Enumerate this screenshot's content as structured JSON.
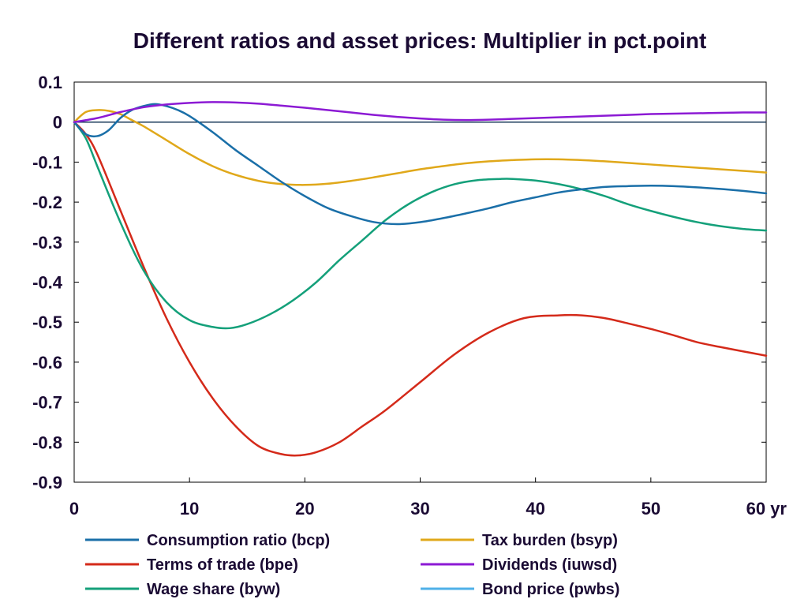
{
  "chart_data": {
    "type": "line",
    "title": "Different ratios and asset prices: Multiplier in pct.point",
    "x_unit_label": "yr",
    "xlim": [
      0,
      60
    ],
    "ylim": [
      -0.9,
      0.1
    ],
    "x_ticks": [
      0,
      10,
      20,
      30,
      40,
      50,
      60
    ],
    "y_ticks": [
      0.1,
      0,
      -0.1,
      -0.2,
      -0.3,
      -0.4,
      -0.5,
      -0.6,
      -0.7,
      -0.8,
      -0.9
    ],
    "y_tick_labels": [
      "0.1",
      "0",
      "-0.1",
      "-0.2",
      "-0.3",
      "-0.4",
      "-0.5",
      "-0.6",
      "-0.7",
      "-0.8",
      "-0.9"
    ],
    "zero_line": true,
    "grid": false,
    "legend_position": "bottom",
    "series": [
      {
        "name": "Consumption ratio (bcp)",
        "color": "#1a6fa8",
        "x": [
          0,
          1,
          2,
          3,
          4,
          5,
          6,
          7,
          8,
          9,
          10,
          12,
          14,
          16,
          18,
          20,
          22,
          24,
          26,
          28,
          30,
          32,
          34,
          36,
          38,
          40,
          42,
          44,
          46,
          48,
          50,
          52,
          54,
          56,
          58,
          60
        ],
        "y": [
          0,
          -0.03,
          -0.035,
          -0.02,
          0.01,
          0.03,
          0.04,
          0.045,
          0.04,
          0.03,
          0.015,
          -0.025,
          -0.07,
          -0.11,
          -0.15,
          -0.185,
          -0.215,
          -0.235,
          -0.25,
          -0.255,
          -0.25,
          -0.24,
          -0.228,
          -0.215,
          -0.2,
          -0.188,
          -0.176,
          -0.168,
          -0.162,
          -0.16,
          -0.159,
          -0.16,
          -0.163,
          -0.167,
          -0.172,
          -0.178
        ]
      },
      {
        "name": "Tax burden (bsyp)",
        "color": "#e0a81a",
        "x": [
          0,
          1,
          2,
          3,
          4,
          5,
          6,
          8,
          10,
          12,
          14,
          16,
          18,
          20,
          22,
          24,
          26,
          28,
          30,
          32,
          34,
          36,
          38,
          40,
          42,
          44,
          46,
          48,
          50,
          52,
          54,
          56,
          58,
          60
        ],
        "y": [
          0,
          0.025,
          0.03,
          0.028,
          0.02,
          0.005,
          -0.01,
          -0.045,
          -0.08,
          -0.11,
          -0.132,
          -0.147,
          -0.155,
          -0.157,
          -0.154,
          -0.147,
          -0.138,
          -0.128,
          -0.118,
          -0.11,
          -0.103,
          -0.098,
          -0.095,
          -0.093,
          -0.093,
          -0.095,
          -0.098,
          -0.102,
          -0.106,
          -0.11,
          -0.114,
          -0.118,
          -0.122,
          -0.126
        ]
      },
      {
        "name": "Terms of trade (bpe)",
        "color": "#d42a1a",
        "x": [
          0,
          1,
          2,
          4,
          6,
          8,
          10,
          12,
          14,
          16,
          18,
          19.5,
          21,
          23,
          25,
          27,
          30,
          33,
          36,
          39,
          42,
          44,
          46,
          48,
          50,
          52,
          54,
          56,
          58,
          60
        ],
        "y": [
          0,
          -0.03,
          -0.08,
          -0.22,
          -0.36,
          -0.49,
          -0.6,
          -0.69,
          -0.76,
          -0.81,
          -0.83,
          -0.833,
          -0.825,
          -0.8,
          -0.76,
          -0.72,
          -0.65,
          -0.58,
          -0.525,
          -0.49,
          -0.483,
          -0.483,
          -0.49,
          -0.503,
          -0.517,
          -0.533,
          -0.55,
          -0.562,
          -0.573,
          -0.584
        ]
      },
      {
        "name": "Dividends (iuwsd)",
        "color": "#8c1ad4",
        "x": [
          0,
          2,
          4,
          6,
          8,
          10,
          12,
          14,
          16,
          18,
          20,
          22,
          24,
          26,
          28,
          30,
          32,
          34,
          36,
          38,
          40,
          42,
          44,
          46,
          48,
          50,
          52,
          54,
          56,
          58,
          60
        ],
        "y": [
          0,
          0.01,
          0.025,
          0.037,
          0.044,
          0.048,
          0.05,
          0.049,
          0.046,
          0.041,
          0.036,
          0.03,
          0.024,
          0.018,
          0.013,
          0.009,
          0.006,
          0.005,
          0.006,
          0.008,
          0.01,
          0.012,
          0.014,
          0.016,
          0.018,
          0.02,
          0.021,
          0.022,
          0.023,
          0.024,
          0.024
        ]
      },
      {
        "name": "Wage share (byw)",
        "color": "#14a07a",
        "x": [
          0,
          1,
          2,
          4,
          6,
          8,
          10,
          12,
          13.5,
          15,
          17,
          19,
          21,
          23,
          25,
          27,
          29,
          31,
          33,
          35,
          37,
          38,
          40,
          42,
          44,
          46,
          48,
          50,
          52,
          54,
          56,
          58,
          60
        ],
        "y": [
          0,
          -0.04,
          -0.11,
          -0.25,
          -0.37,
          -0.45,
          -0.495,
          -0.512,
          -0.515,
          -0.505,
          -0.48,
          -0.445,
          -0.4,
          -0.345,
          -0.295,
          -0.245,
          -0.205,
          -0.175,
          -0.155,
          -0.145,
          -0.142,
          -0.142,
          -0.146,
          -0.155,
          -0.168,
          -0.185,
          -0.205,
          -0.222,
          -0.237,
          -0.25,
          -0.26,
          -0.267,
          -0.271
        ]
      },
      {
        "name": "Bond price (pwbs)",
        "color": "#4fb0e8",
        "x": [],
        "y": []
      }
    ]
  }
}
